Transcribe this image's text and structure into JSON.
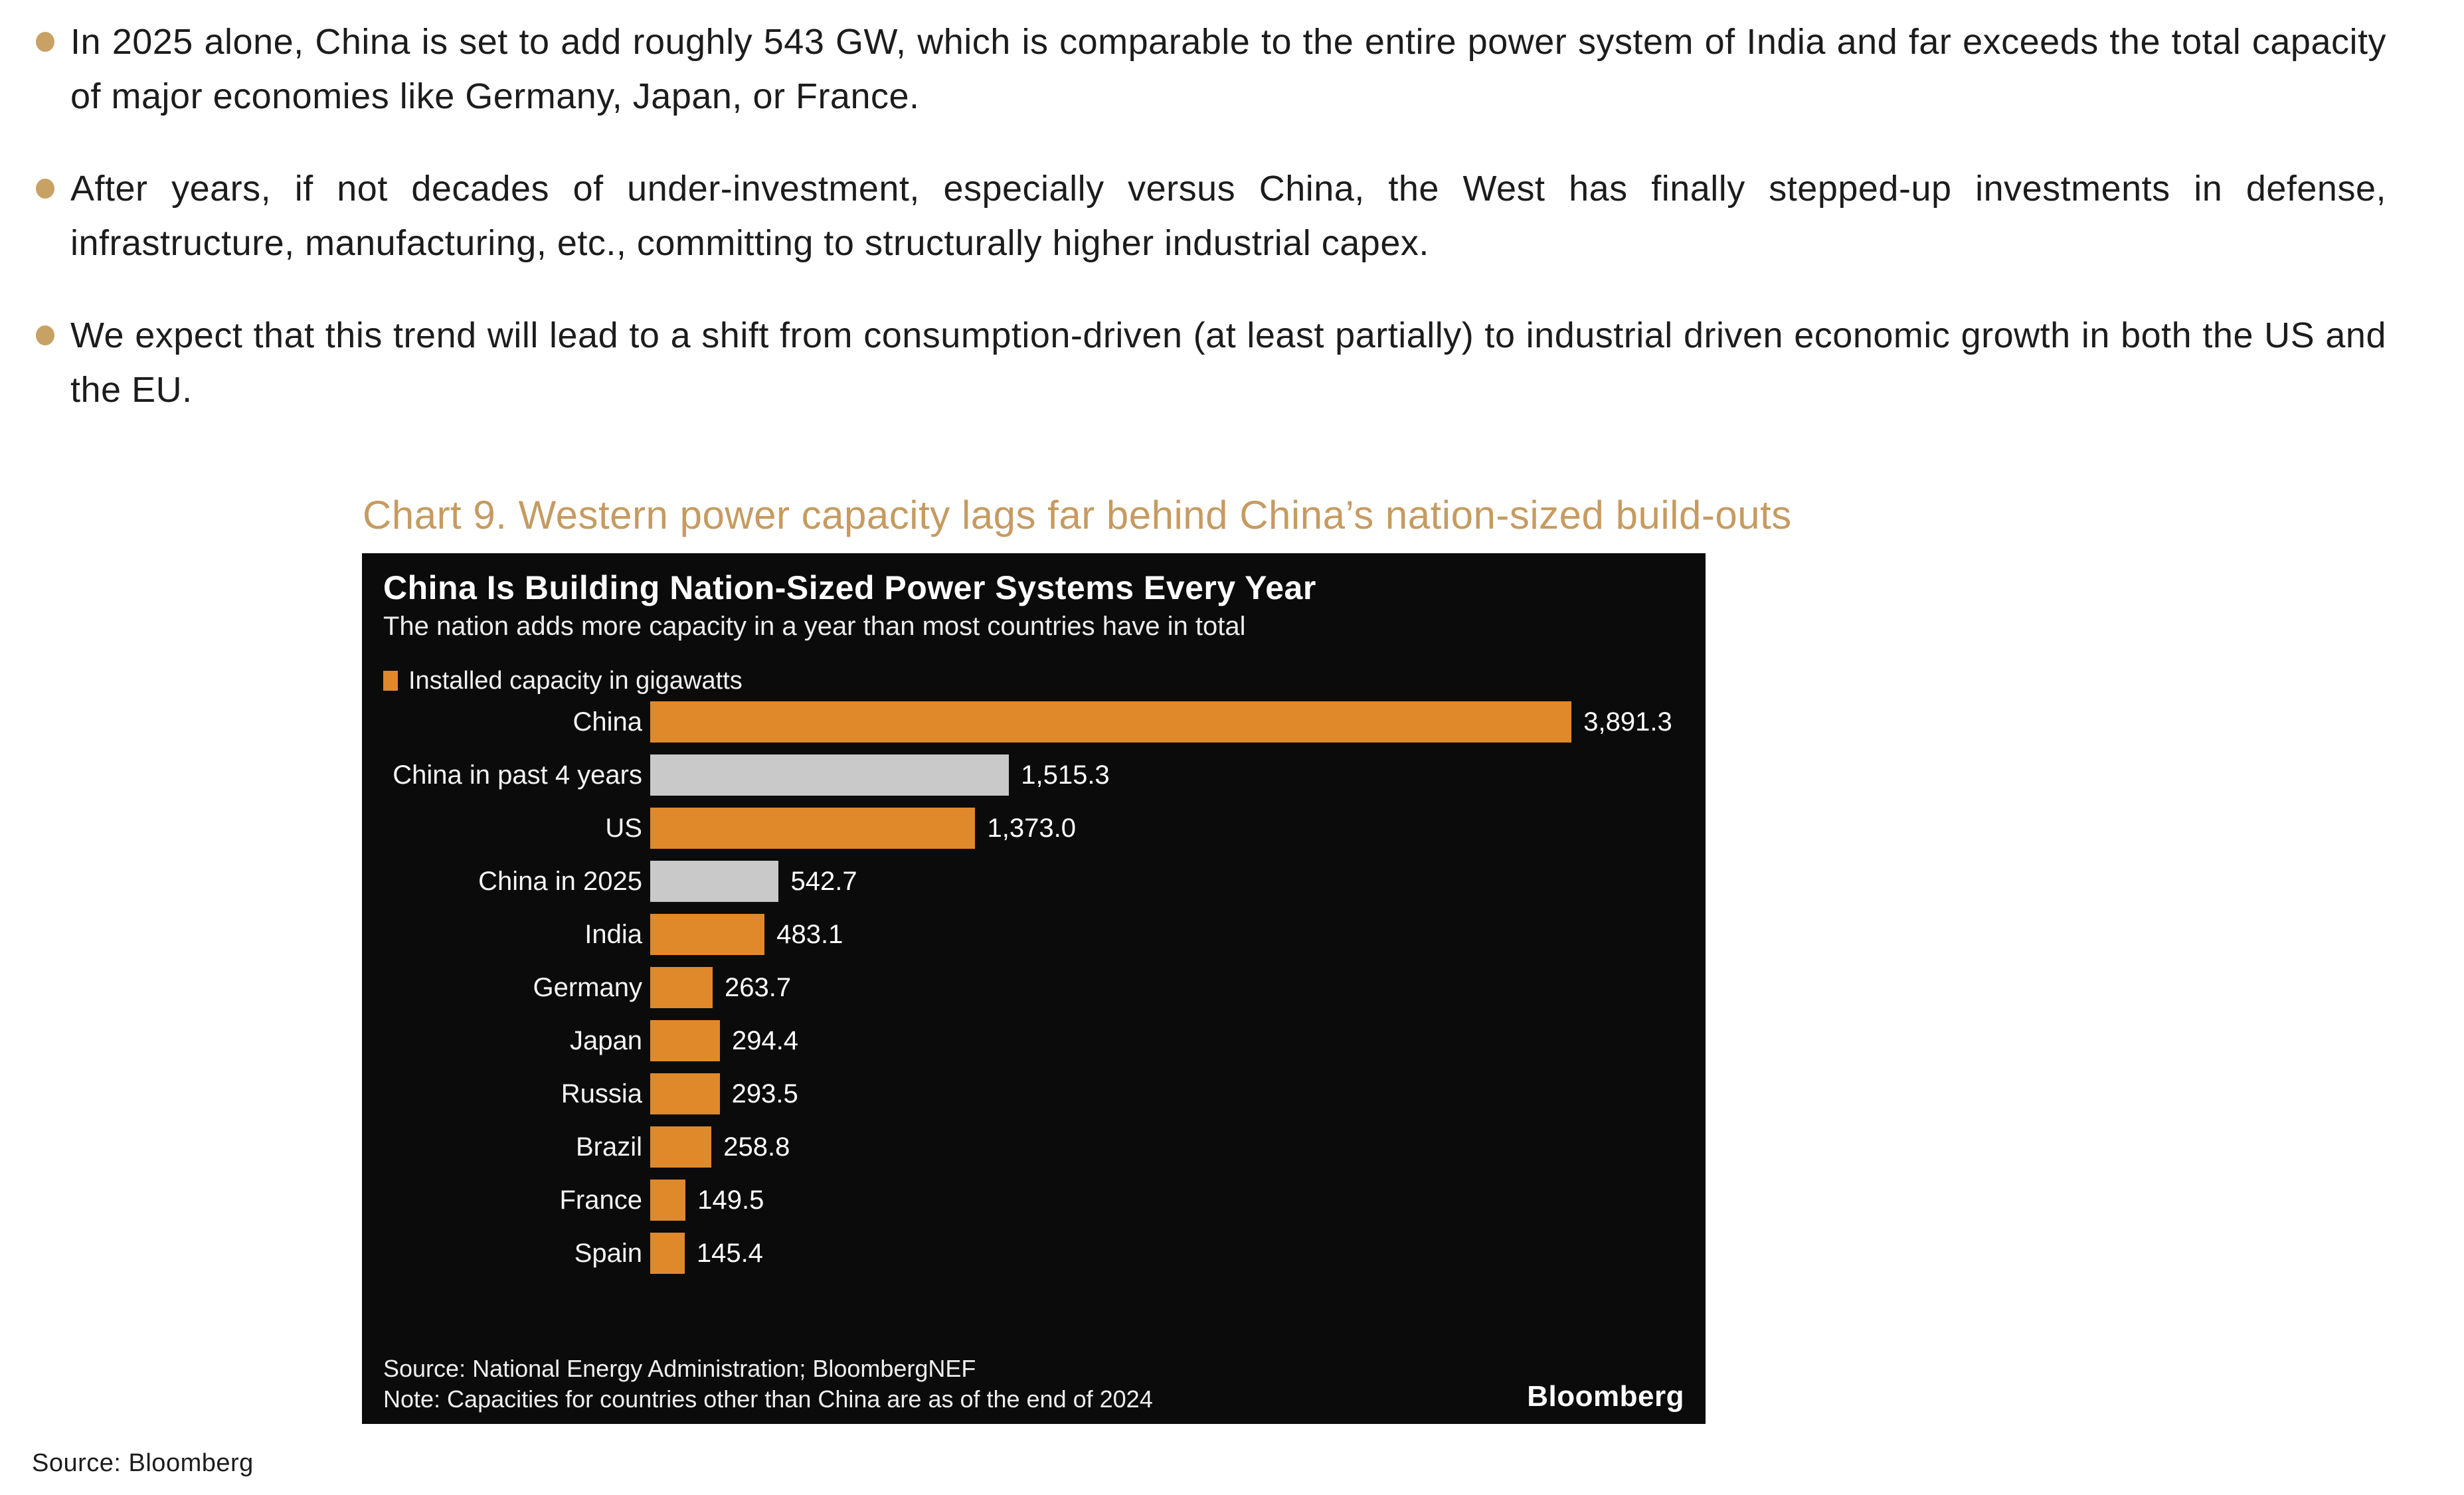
{
  "page": {
    "bullets": [
      "In 2025 alone, China is set to add roughly 543 GW, which is comparable to the entire power system of India and far exceeds the total capacity of major economies like Germany, Japan, or France.",
      "After years, if not decades of under-investment, especially versus China, the West has finally stepped-up investments in defense, infrastructure, manufacturing, etc., committing to structurally higher industrial capex.",
      "We expect that this trend will lead to a shift from consumption-driven (at least partially) to industrial driven economic growth in both the US and the EU."
    ],
    "chart_caption": "Chart 9. Western power capacity lags far behind China’s nation-sized build-outs",
    "source_line": "Source: Bloomberg"
  },
  "chart": {
    "title": "China Is Building Nation-Sized Power Systems Every Year",
    "subtitle": "The nation adds more capacity in a year than most countries have in total",
    "legend_label": "Installed capacity in gigawatts",
    "source_note": "Source: National Energy Administration; BloombergNEF",
    "note": "Note: Capacities for countries other than China are as of the end of 2024",
    "logo": "Bloomberg"
  },
  "chart_data": {
    "type": "bar",
    "orientation": "horizontal",
    "title": "China Is Building Nation-Sized Power Systems Every Year",
    "subtitle": "The nation adds more capacity in a year than most countries have in total",
    "legend": [
      "Installed capacity in gigawatts"
    ],
    "unit": "gigawatts",
    "categories": [
      "China",
      "China in past 4 years",
      "US",
      "China in 2025",
      "India",
      "Germany",
      "Japan",
      "Russia",
      "Brazil",
      "France",
      "Spain"
    ],
    "values": [
      3891.3,
      1515.3,
      1373.0,
      542.7,
      483.1,
      263.7,
      294.4,
      293.5,
      258.8,
      149.5,
      145.4
    ],
    "value_labels": [
      "3,891.3",
      "1,515.3",
      "1,373.0",
      "542.7",
      "483.1",
      "263.7",
      "294.4",
      "293.5",
      "258.8",
      "149.5",
      "145.4"
    ],
    "bar_colors": [
      "orange",
      "gray",
      "orange",
      "gray",
      "orange",
      "orange",
      "orange",
      "orange",
      "orange",
      "orange",
      "orange"
    ],
    "colors": {
      "orange": "#e0892a",
      "gray": "#c9c9c9"
    },
    "xlim": [
      0,
      4400
    ],
    "grid": false,
    "legend_position": "top-left",
    "value_labels_position": "end-of-bar",
    "layout": {
      "max_value": 3891.3,
      "bar_track_max_pct": 89.1
    }
  },
  "accent_colors": {
    "bullet_dot": "#c8a165",
    "caption_text": "#c69b61",
    "chart_background": "#0b0b0b"
  }
}
